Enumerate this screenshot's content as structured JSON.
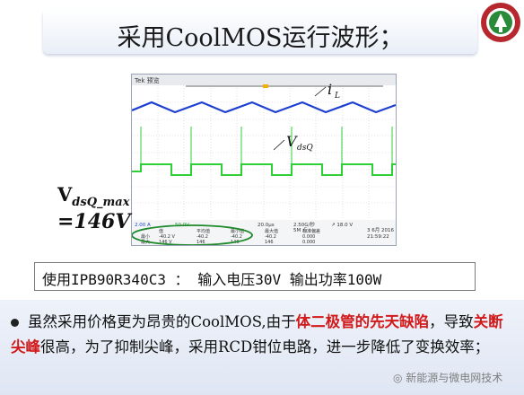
{
  "title": "采用CoolMOS运行波形；",
  "vmax_label": "V",
  "vmax_sub": "dsQ_max",
  "vmax_value": "=146V",
  "scope": {
    "il_label": "i",
    "il_sub": "L",
    "vdsq_label": "V",
    "vdsq_sub": "dsQ",
    "header_left": "Tek 预览",
    "ch_scale1": "2.00 A",
    "ch_scale2": "50.0V",
    "time_scale": "20.0μs",
    "sample_rate": "2.50G/秒",
    "record_len": "5M 点",
    "trigger": "↗ 18.0 V",
    "date": "3 6月 2016",
    "time": "21:59:22",
    "meas_headers": [
      "值",
      "平均值",
      "最小值",
      "最大值",
      "标准偏差"
    ],
    "meas_rows": [
      {
        "label": "最小",
        "vals": [
          "-40.2 V",
          "-40.2",
          "-40.2",
          "-40.2",
          "0.000"
        ]
      },
      {
        "label": "最大",
        "vals": [
          "146 V",
          "146",
          "146",
          "146",
          "0.000"
        ]
      }
    ]
  },
  "info": "使用IPB90R340C3 ： 输入电压30V 输出功率100W",
  "para": {
    "part1": "虽然采用价格更为昂贵的CoolMOS,由于",
    "hl1": "体二极管的先天缺陷",
    "part2": "，导致",
    "hl2": "关断尖峰",
    "part3": "很高，为了抑制尖峰，采用RCD钳位电路，进一步降低了变换效率；"
  },
  "watermark": "新能源与微电网技术",
  "colors": {
    "il": "#1c3fd0",
    "vdsq": "#2fcf38",
    "highlight": "#d21a1a",
    "ellipse": "#1e8a2b"
  }
}
